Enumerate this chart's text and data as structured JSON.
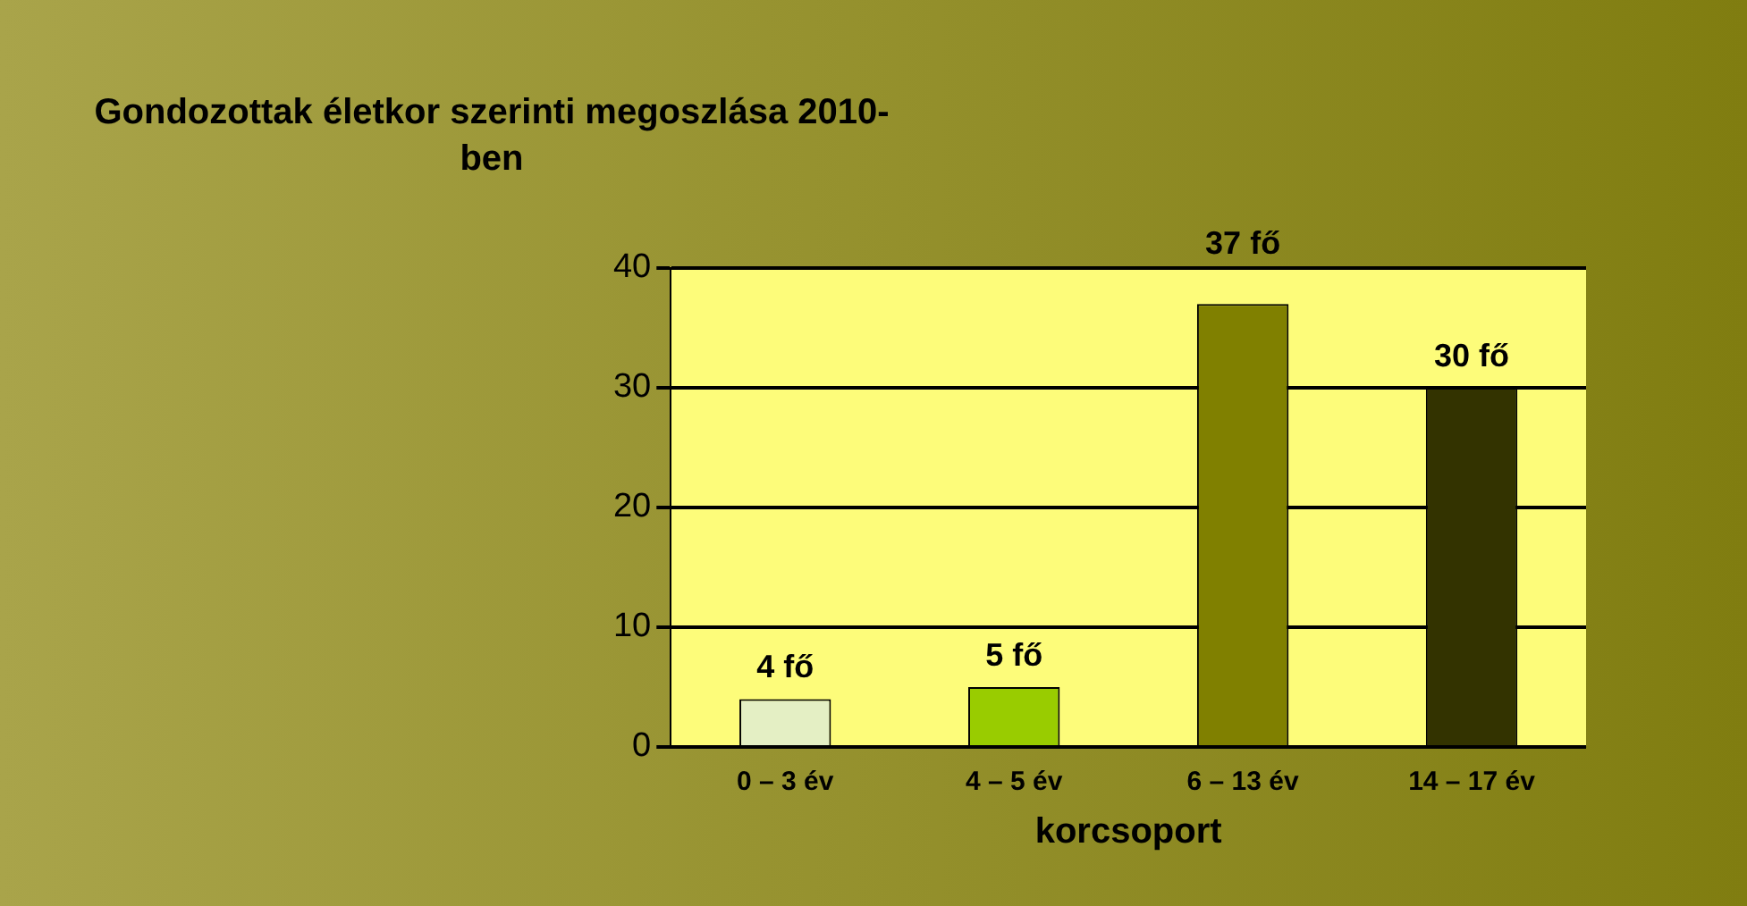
{
  "chart_data": {
    "type": "bar",
    "title": "Gondozottak életkor szerinti megoszlása 2010-ben",
    "xlabel": "korcsoport",
    "categories": [
      "0 – 3 év",
      "4 – 5 év",
      "6 – 13 év",
      "14 – 17 év"
    ],
    "values": [
      4,
      5,
      37,
      30
    ],
    "colors": [
      "#e4efc4",
      "#99cc00",
      "#808000",
      "#333300"
    ],
    "value_labels": [
      "4 fő",
      "5 fő",
      "37 fő",
      "30 fő"
    ],
    "ylim": [
      0,
      40
    ],
    "yticks": [
      0,
      10,
      20,
      30,
      40
    ],
    "grid": "y",
    "legend": false
  }
}
